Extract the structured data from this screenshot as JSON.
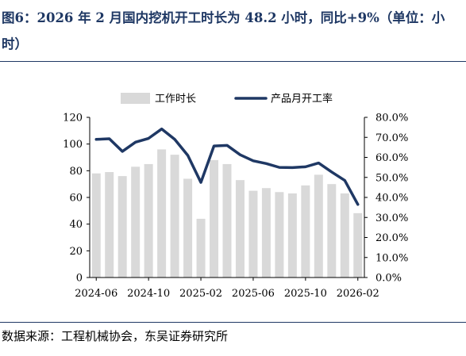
{
  "title": "图6：2026 年 2 月国内挖机开工时长为 48.2 小时，同比+9%（单位：小时）",
  "source": "数据来源：工程机械协会，东吴证券研究所",
  "colors": {
    "bar": "#d9d9d9",
    "line": "#1f3864",
    "title": "#1f3864"
  },
  "chart_data": {
    "type": "bar",
    "legend_position": "top",
    "grid": false,
    "x": [
      "2024-06",
      "2024-07",
      "2024-08",
      "2024-09",
      "2024-10",
      "2024-11",
      "2024-12",
      "2025-01",
      "2025-02",
      "2025-03",
      "2025-04",
      "2025-05",
      "2025-06",
      "2025-07",
      "2025-08",
      "2025-09",
      "2025-10",
      "2025-11",
      "2025-12",
      "2026-01",
      "2026-02"
    ],
    "x_tick_labels": [
      "2024-06",
      "2024-10",
      "2025-02",
      "2025-06",
      "2025-10",
      "2026-02"
    ],
    "x_tick_values": [
      "2024-06",
      "2024-10",
      "2025-02",
      "2025-06",
      "2025-10",
      "2026-02"
    ],
    "y_left": {
      "lim": [
        0,
        120
      ],
      "ticks": [
        0,
        20,
        40,
        60,
        80,
        100,
        120
      ],
      "tick_labels": [
        "0",
        "20",
        "40",
        "60",
        "80",
        "100",
        "120"
      ]
    },
    "y_right": {
      "lim": [
        0,
        80
      ],
      "ticks": [
        0,
        10,
        20,
        30,
        40,
        50,
        60,
        70,
        80
      ],
      "tick_labels": [
        "0.0%",
        "10.0%",
        "20.0%",
        "30.0%",
        "40.0%",
        "50.0%",
        "60.0%",
        "70.0%",
        "80.0%"
      ]
    },
    "series": [
      {
        "name": "工作时长",
        "kind": "bar",
        "axis": "left",
        "values": [
          78,
          79,
          76,
          83,
          85,
          96,
          92,
          74,
          44,
          88,
          85,
          73,
          65,
          67,
          64,
          63,
          69,
          77,
          70,
          63,
          48.2
        ]
      },
      {
        "name": "产品月开工率",
        "kind": "line",
        "axis": "right",
        "values": [
          69.0,
          69.3,
          63.0,
          67.6,
          69.5,
          74.2,
          69.0,
          61.0,
          47.5,
          65.7,
          66.0,
          61.3,
          58.3,
          56.9,
          55.0,
          54.9,
          55.3,
          57.2,
          52.7,
          48.5,
          36.5
        ]
      }
    ]
  }
}
